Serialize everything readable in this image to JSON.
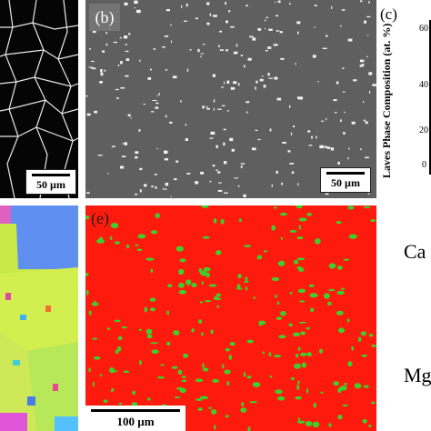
{
  "panels": {
    "b": {
      "tag": "(b)",
      "scale": "50 µm"
    },
    "a": {
      "scale": "50 µm"
    },
    "c": {
      "tag": "(c)",
      "ylabel": "Laves Phase Composition (at. %)",
      "ticks": [
        "60",
        "40",
        "20",
        "0"
      ]
    },
    "e": {
      "tag": "(e)",
      "scale": "100 µm"
    }
  },
  "legend": {
    "ca": "Ca",
    "mg": "Mg"
  },
  "colors": {
    "phase_map_matrix": "#ff1a0e",
    "phase_map_laves": "#3ad12c",
    "sem_matrix": "#5f5f5f",
    "sem_particles": "#f2f2f2"
  }
}
